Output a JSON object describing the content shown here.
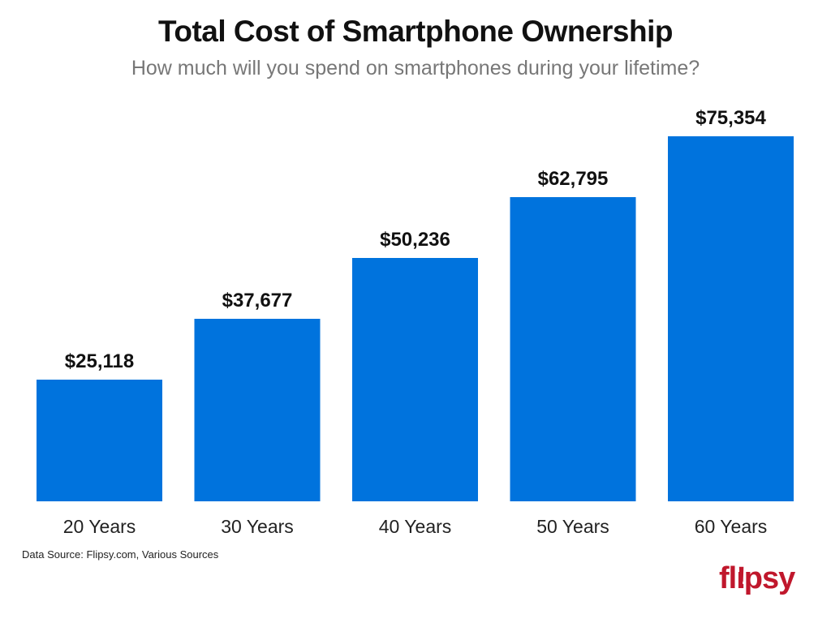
{
  "chart_data": {
    "type": "bar",
    "title": "Total Cost of Smartphone Ownership",
    "subtitle": "How much will you spend on smartphones during your lifetime?",
    "categories": [
      "20 Years",
      "30 Years",
      "40 Years",
      "50 Years",
      "60 Years"
    ],
    "values": [
      25118,
      37677,
      50236,
      62795,
      75354
    ],
    "data_labels": [
      "$25,118",
      "$37,677",
      "$50,236",
      "$62,795",
      "$75,354"
    ],
    "xlabel": "",
    "ylabel": "",
    "ylim": [
      0,
      75354
    ],
    "grid": false,
    "bar_color": "#0073dd"
  },
  "source": "Data Source: Flipsy.com, Various Sources",
  "logo": {
    "text": "flipsy",
    "color": "#c0172c"
  }
}
